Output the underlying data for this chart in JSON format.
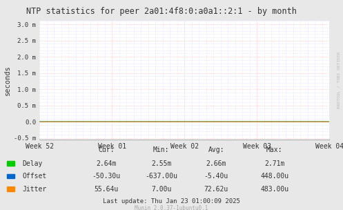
{
  "title": "NTP statistics for peer 2a01:4f8:0:a0a1::2:1 - by month",
  "ylabel": "seconds",
  "bg_color": "#e8e8e8",
  "plot_bg_color": "#ffffff",
  "grid_color_major": "#ffaaaa",
  "grid_color_minor": "#ccccff",
  "delay_color": "#00cc00",
  "offset_color": "#0066cc",
  "jitter_color": "#ff8800",
  "ylim": [
    -0.55,
    3.1
  ],
  "yticks": [
    -0.5,
    0.0,
    0.5,
    1.0,
    1.5,
    2.0,
    2.5,
    3.0
  ],
  "ytick_labels": [
    "-0.5 m",
    "0.0",
    "0.5 m",
    "1.0 m",
    "1.5 m",
    "2.0 m",
    "2.5 m",
    "3.0 m"
  ],
  "x_week_labels": [
    "Week 52",
    "Week 01",
    "Week 02",
    "Week 03",
    "Week 04"
  ],
  "delay_mean": 0.00264,
  "delay_noise": 7e-05,
  "legend_items": [
    "Delay",
    "Offset",
    "Jitter"
  ],
  "legend_colors": [
    "#00cc00",
    "#0066cc",
    "#ff8800"
  ],
  "stats_cur": [
    "2.64m",
    "-50.30u",
    "55.64u"
  ],
  "stats_min": [
    "2.55m",
    "-637.00u",
    "7.00u"
  ],
  "stats_avg": [
    "2.66m",
    "-5.40u",
    "72.62u"
  ],
  "stats_max": [
    "2.71m",
    "448.00u",
    "483.00u"
  ],
  "last_update": "Last update: Thu Jan 23 01:00:09 2025",
  "munin_version": "Munin 2.0.37-1ubuntu0.1",
  "watermark": "RRDTOOL / TOBI OETIKER",
  "n_points": 700
}
